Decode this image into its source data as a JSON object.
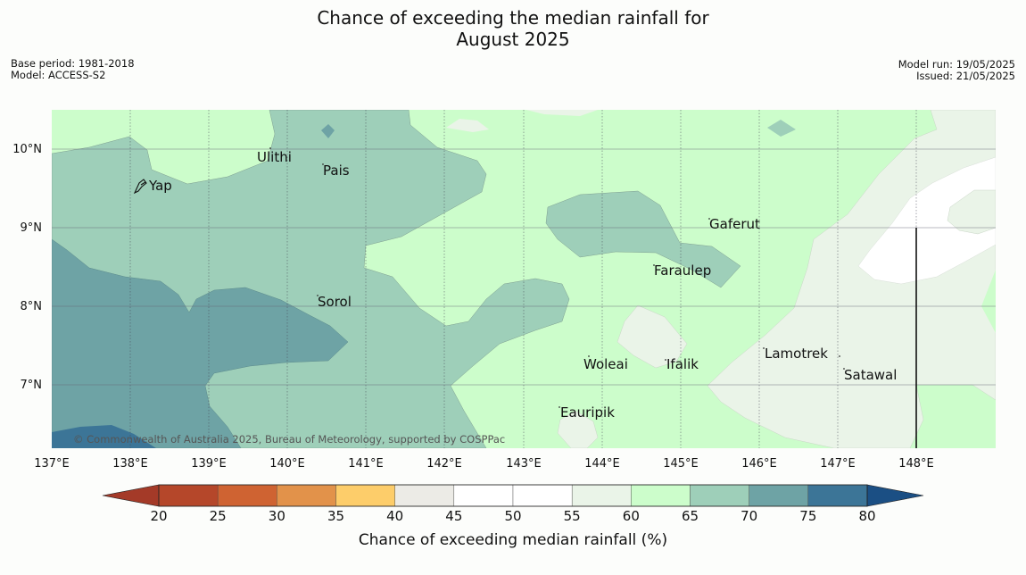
{
  "header": {
    "title_line1": "Chance of exceeding the median rainfall for",
    "title_line2": "August 2025",
    "base_period": "Base period: 1981-2018",
    "model": "Model: ACCESS-S2",
    "model_run": "Model run: 19/05/2025",
    "issued": "Issued: 21/05/2025"
  },
  "map": {
    "copyright": "© Commonwealth of Australia 2025, Bureau of Meteorology, supported by COSPPac",
    "lon_ticks": [
      "137°E",
      "138°E",
      "139°E",
      "140°E",
      "141°E",
      "142°E",
      "143°E",
      "144°E",
      "145°E",
      "146°E",
      "147°E",
      "148°E"
    ],
    "lat_ticks": [
      "10°N",
      "9°N",
      "8°N",
      "7°N"
    ],
    "places": [
      {
        "name": "Ulithi"
      },
      {
        "name": "Pais"
      },
      {
        "name": "Yap"
      },
      {
        "name": "Gaferut"
      },
      {
        "name": "Faraulep"
      },
      {
        "name": "Sorol"
      },
      {
        "name": "Lamotrek"
      },
      {
        "name": "Woleai"
      },
      {
        "name": "Ifalik"
      },
      {
        "name": "Satawal"
      },
      {
        "name": "Eauripik"
      }
    ]
  },
  "legend": {
    "title": "Chance of exceeding median rainfall (%)",
    "ticks": [
      "20",
      "25",
      "30",
      "35",
      "40",
      "45",
      "50",
      "55",
      "60",
      "65",
      "70",
      "75",
      "80"
    ],
    "colors": [
      "#b5472a",
      "#cf6332",
      "#e2924a",
      "#fdcd6a",
      "#ecebe6",
      "#ffffff",
      "#ffffff",
      "#eaf4e8",
      "#ccfdcb",
      "#9ecfb9",
      "#6ea3a5",
      "#3c7597"
    ],
    "low_color": "#a43a28",
    "high_color": "#1b4f84"
  }
}
